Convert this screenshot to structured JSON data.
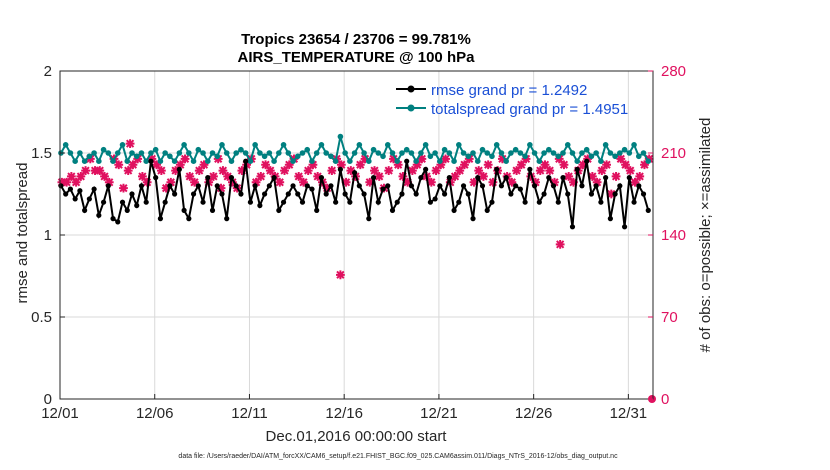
{
  "colors": {
    "rmse": "#000000",
    "spread": "#008080",
    "obs": "#e0115f",
    "legend_text": "#1a4fd6",
    "grid": "#d9d9d9",
    "axis": "#262626"
  },
  "chart_data": {
    "type": "line",
    "title": "Tropics 23654 / 23706 = 99.781%",
    "subtitle": "AIRS_TEMPERATURE @ 100 hPa",
    "xlabel": "Dec.01,2016 00:00:00 start",
    "ylabel": "rmse and totalspread",
    "ylabel_right": "# of obs: o=possible; ×=assimilated",
    "footnote": "data file: /Users/raeder/DAI/ATM_forcXX/CAM6_setup/f.e21.FHIST_BGC.f09_025.CAM6assim.011/Diags_NTrS_2016-12/obs_diag_output.nc",
    "xlim": [
      0,
      31.3
    ],
    "ylim": [
      0,
      2
    ],
    "ylim_right": [
      0,
      280
    ],
    "xticks": [
      {
        "value": 0,
        "label": "12/01"
      },
      {
        "value": 5,
        "label": "12/06"
      },
      {
        "value": 10,
        "label": "12/11"
      },
      {
        "value": 15,
        "label": "12/16"
      },
      {
        "value": 20,
        "label": "12/21"
      },
      {
        "value": 25,
        "label": "12/26"
      },
      {
        "value": 30,
        "label": "12/31"
      }
    ],
    "yticks": [
      {
        "value": 0,
        "label": "0"
      },
      {
        "value": 0.5,
        "label": "0.5"
      },
      {
        "value": 1,
        "label": "1"
      },
      {
        "value": 1.5,
        "label": "1.5"
      },
      {
        "value": 2,
        "label": "2"
      }
    ],
    "yticks_right": [
      {
        "value": 0,
        "label": "0"
      },
      {
        "value": 70,
        "label": "70"
      },
      {
        "value": 140,
        "label": "140"
      },
      {
        "value": 210,
        "label": "210"
      },
      {
        "value": 280,
        "label": "280"
      }
    ],
    "x_step_days": 0.25,
    "series": [
      {
        "name": "rmse",
        "legend": "rmse grand pr = 1.2492",
        "values": [
          1.3,
          1.25,
          1.28,
          1.22,
          1.27,
          1.15,
          1.22,
          1.28,
          1.12,
          1.2,
          1.3,
          1.1,
          1.08,
          1.2,
          1.15,
          1.25,
          1.18,
          1.3,
          1.2,
          1.45,
          1.35,
          1.1,
          1.2,
          1.3,
          1.25,
          1.4,
          1.15,
          1.1,
          1.25,
          1.3,
          1.2,
          1.35,
          1.15,
          1.3,
          1.25,
          1.1,
          1.35,
          1.3,
          1.25,
          1.45,
          1.2,
          1.3,
          1.18,
          1.25,
          1.3,
          1.35,
          1.15,
          1.2,
          1.25,
          1.3,
          1.25,
          1.2,
          1.3,
          1.28,
          1.15,
          1.35,
          1.25,
          1.3,
          1.2,
          1.4,
          1.25,
          1.2,
          1.38,
          1.3,
          1.25,
          1.1,
          1.35,
          1.2,
          1.28,
          1.3,
          1.15,
          1.2,
          1.25,
          1.45,
          1.3,
          1.25,
          1.35,
          1.4,
          1.2,
          1.22,
          1.3,
          1.25,
          1.35,
          1.15,
          1.2,
          1.3,
          1.25,
          1.1,
          1.35,
          1.3,
          1.15,
          1.2,
          1.4,
          1.3,
          1.35,
          1.25,
          1.3,
          1.28,
          1.2,
          1.4,
          1.3,
          1.2,
          1.25,
          1.35,
          1.3,
          1.2,
          1.35,
          1.25,
          1.05,
          1.4,
          1.3,
          1.45,
          1.25,
          1.3,
          1.2,
          1.35,
          1.1,
          1.25,
          1.3,
          1.05,
          1.35,
          1.2,
          1.3,
          1.25,
          1.15,
          1.3,
          1.2,
          1.25,
          1.1,
          1.35,
          1.22,
          1.3,
          1.2,
          1.15,
          1.3,
          1.25,
          1.2,
          1.35,
          1.3,
          1.45,
          1.25,
          1.15,
          1.3,
          1.1,
          1.35,
          1.3,
          1.25,
          1.4,
          1.2,
          1.3,
          1.35,
          1.25,
          1.3,
          1.2,
          1.15,
          1.35,
          1.25,
          1.45,
          1.2,
          1.3,
          1.25,
          1.4,
          1.35,
          1.3,
          1.25,
          1.3,
          1.3,
          1.2,
          1.35,
          1.3,
          1.22,
          1.45,
          1.3,
          1.2,
          1.25,
          1.3,
          1.4,
          1.25,
          1.3,
          1.35,
          1.2,
          1.3,
          1.25,
          1.3,
          1.2,
          1.35,
          1.3,
          1.4,
          1.25,
          1.3,
          1.3,
          1.4,
          1.25,
          1.3,
          1.35,
          1.3,
          1.2,
          1.25,
          1.3,
          1.35,
          1.2,
          1.3,
          1.25,
          1.3,
          1.3,
          1.25,
          1.2,
          1.25,
          1.3,
          1.2,
          1.35,
          1.3,
          1.25,
          1.3,
          1.2,
          1.28,
          1.3,
          1.32,
          1.25,
          1.3,
          1.25,
          1.3,
          1.2,
          1.35,
          1.3,
          1.25,
          1.3,
          1.2,
          1.38,
          1.25,
          1.3,
          1.25,
          1.3,
          1.2,
          1.22,
          1.3,
          1.25,
          1.3,
          1.35,
          1.25,
          1.3,
          1.15,
          1.45,
          1.4,
          1.3,
          1.25
        ]
      },
      {
        "name": "totalspread",
        "legend": "totalspread grand pr = 1.4951",
        "values": [
          1.5,
          1.55,
          1.5,
          1.45,
          1.5,
          1.45,
          1.48,
          1.5,
          1.45,
          1.52,
          1.5,
          1.45,
          1.5,
          1.55,
          1.45,
          1.5,
          1.48,
          1.5,
          1.45,
          1.5,
          1.52,
          1.45,
          1.5,
          1.48,
          1.45,
          1.5,
          1.55,
          1.5,
          1.45,
          1.52,
          1.5,
          1.45,
          1.5,
          1.48,
          1.55,
          1.5,
          1.45,
          1.5,
          1.52,
          1.5,
          1.45,
          1.55,
          1.5,
          1.48,
          1.5,
          1.45,
          1.5,
          1.55,
          1.5,
          1.45,
          1.48,
          1.5,
          1.52,
          1.45,
          1.5,
          1.55,
          1.5,
          1.48,
          1.45,
          1.6,
          1.5,
          1.45,
          1.5,
          1.55,
          1.5,
          1.45,
          1.52,
          1.5,
          1.48,
          1.55,
          1.5,
          1.45,
          1.5,
          1.52,
          1.5,
          1.45,
          1.5,
          1.55,
          1.48,
          1.5,
          1.45,
          1.52,
          1.5,
          1.45,
          1.55,
          1.5,
          1.48,
          1.5,
          1.45,
          1.52,
          1.5,
          1.48,
          1.55,
          1.5,
          1.45,
          1.5,
          1.52,
          1.5,
          1.48,
          1.55,
          1.5,
          1.45,
          1.5,
          1.52,
          1.5,
          1.48,
          1.5,
          1.55,
          1.5,
          1.45,
          1.5,
          1.52,
          1.48,
          1.5,
          1.45,
          1.55,
          1.5,
          1.48,
          1.5,
          1.52,
          1.5,
          1.55,
          1.48,
          1.5,
          1.45,
          1.52,
          1.5,
          1.48,
          1.55,
          1.5,
          1.45,
          1.5,
          1.55,
          1.6,
          1.52,
          1.5,
          1.48,
          1.55,
          1.5,
          1.52,
          1.55,
          1.5,
          1.48,
          1.52,
          1.55,
          1.5,
          1.48,
          1.55,
          1.5,
          1.52,
          1.55,
          1.5,
          1.48,
          1.52,
          1.5,
          1.55,
          1.5,
          1.48,
          1.52,
          1.55,
          1.5,
          1.48,
          1.5,
          1.52,
          1.55,
          1.5,
          1.48,
          1.52,
          1.5,
          1.55,
          1.5,
          1.52,
          1.48,
          1.5,
          1.55,
          1.5,
          1.52,
          1.5,
          1.48,
          1.55,
          1.5,
          1.52,
          1.5,
          1.55,
          1.48,
          1.5,
          1.52,
          1.5,
          1.55,
          1.5,
          1.48,
          1.52,
          1.5,
          1.55,
          1.5,
          1.48,
          1.52,
          1.5,
          1.55,
          1.5,
          1.52,
          1.48,
          1.5,
          1.55,
          1.5,
          1.52,
          1.5,
          1.48,
          1.55,
          1.5,
          1.52,
          1.5,
          1.48,
          1.52,
          1.55,
          1.5,
          1.48,
          1.52,
          1.5,
          1.55,
          1.5,
          1.48,
          1.52,
          1.5,
          1.55,
          1.5,
          1.48,
          1.52,
          1.5,
          1.55,
          1.5,
          1.48,
          1.52,
          1.5,
          1.55,
          1.5,
          1.48,
          1.52,
          1.5,
          1.55,
          1.5,
          1.48,
          1.52,
          1.5,
          1.55,
          1.5
        ]
      },
      {
        "name": "obs_assimilated",
        "axis": "right",
        "values": [
          185,
          185,
          190,
          185,
          190,
          195,
          205,
          195,
          195,
          190,
          185,
          205,
          200,
          180,
          195,
          200,
          205,
          190,
          185,
          205,
          200,
          195,
          180,
          185,
          195,
          200,
          205,
          190,
          185,
          195,
          200,
          185,
          190,
          205,
          195,
          190,
          185,
          180,
          195,
          200,
          205,
          185,
          190,
          200,
          195,
          190,
          185,
          195,
          200,
          205,
          190,
          185,
          195,
          200,
          190,
          185,
          180,
          195,
          205,
          200,
          185,
          195,
          190,
          200,
          205,
          185,
          195,
          190,
          180,
          195,
          205,
          200,
          190,
          185,
          195,
          200,
          205,
          190,
          185,
          195,
          200,
          205,
          185,
          190,
          195,
          200,
          205,
          185,
          195,
          190,
          200,
          185,
          195,
          205,
          190,
          185,
          195,
          200,
          205,
          190,
          185,
          195,
          200,
          195,
          185,
          205,
          200,
          190,
          185,
          195,
          200,
          205,
          190,
          185,
          195,
          200,
          175,
          190,
          205,
          200,
          195,
          185,
          190,
          200,
          205,
          195,
          185,
          190,
          205,
          200,
          195,
          185,
          190,
          205,
          200,
          195,
          185,
          190,
          205,
          200,
          195,
          190,
          185,
          200,
          205,
          195,
          190,
          185,
          200,
          205,
          195,
          190,
          185,
          200,
          205,
          195,
          190,
          185,
          200,
          205,
          195,
          190,
          185,
          200,
          205,
          195,
          190,
          185,
          200,
          205,
          195,
          190,
          185,
          200,
          205,
          195,
          190,
          185,
          200,
          205,
          195,
          190,
          185,
          200,
          205,
          195,
          190,
          185,
          200,
          205,
          195,
          190,
          185,
          200,
          205,
          195,
          190,
          185,
          200,
          205,
          195,
          190,
          185,
          200,
          205,
          195,
          190,
          185,
          200,
          205,
          195,
          190,
          185,
          200,
          205,
          195,
          190,
          185,
          200,
          205,
          195,
          190,
          185,
          200,
          205,
          195,
          190,
          185,
          200,
          205,
          195,
          190,
          185,
          200,
          205,
          195,
          190,
          185,
          200,
          205,
          195,
          190,
          185,
          200,
          205,
          195,
          190
        ]
      }
    ],
    "obs_outliers": [
      {
        "x": 3.7,
        "value": 218,
        "label": ""
      },
      {
        "x": 8.5,
        "value": 180,
        "label": ""
      },
      {
        "x": 14.8,
        "value": 106,
        "label": ""
      },
      {
        "x": 26.4,
        "value": 132,
        "label": ""
      }
    ],
    "legend_position": "top-right"
  }
}
